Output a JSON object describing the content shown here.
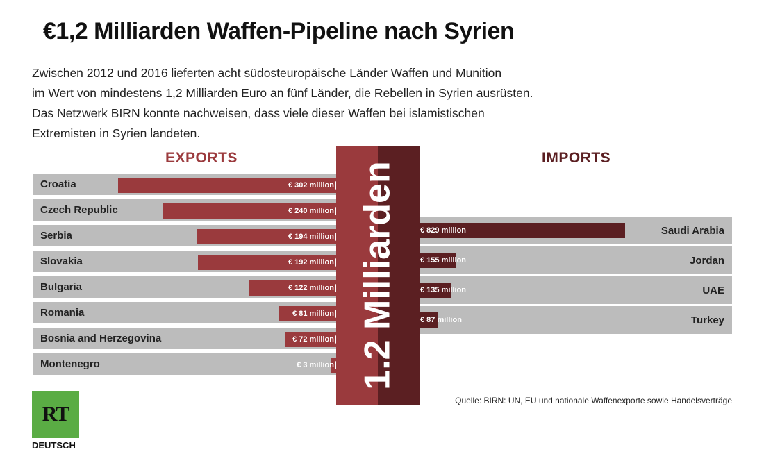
{
  "title": "€1,2 Milliarden Waffen-Pipeline nach Syrien",
  "intro": [
    "Zwischen 2012 und 2016 lieferten acht südosteuropäische Länder Waffen und Munition",
    "im Wert von mindestens 1,2 Milliarden Euro an fünf Länder, die Rebellen in Syrien ausrüsten.",
    "Das Netzwerk BIRN konnte nachweisen, dass viele dieser Waffen bei islamistischen",
    "Extremisten in Syrien landeten."
  ],
  "pipeline_label": "1.2 Milliarden",
  "source": "Quelle: BIRN: UN, EU und nationale Waffenexporte sowie Handelsverträge",
  "logo": {
    "text": "RT",
    "subtitle": "DEUTSCH",
    "color": "#5aac44"
  },
  "colors": {
    "exports": "#9a3a3d",
    "imports": "#5b1f22",
    "row_bg": "#bcbcbc"
  },
  "chart_data": [
    {
      "type": "bar",
      "title": "EXPORTS",
      "unit": "€ million",
      "categories": [
        "Croatia",
        "Czech Republic",
        "Serbia",
        "Slovakia",
        "Bulgaria",
        "Romania",
        "Bosnia and Herzegovina",
        "Montenegro"
      ],
      "values": [
        302,
        240,
        194,
        192,
        122,
        81,
        72,
        3
      ],
      "value_labels": [
        "€ 302 million",
        "€ 240 million",
        "€ 194 million",
        "€ 192 million",
        "€ 122 million",
        "€ 81 million",
        "€ 72 million",
        "€ 3 million"
      ]
    },
    {
      "type": "bar",
      "title": "IMPORTS",
      "unit": "€ million",
      "categories": [
        "Saudi Arabia",
        "Jordan",
        "UAE",
        "Turkey"
      ],
      "values": [
        829,
        155,
        135,
        87
      ],
      "value_labels": [
        "€ 829 million",
        "€ 155 million",
        "€ 135 million",
        "€ 87 million"
      ]
    }
  ]
}
